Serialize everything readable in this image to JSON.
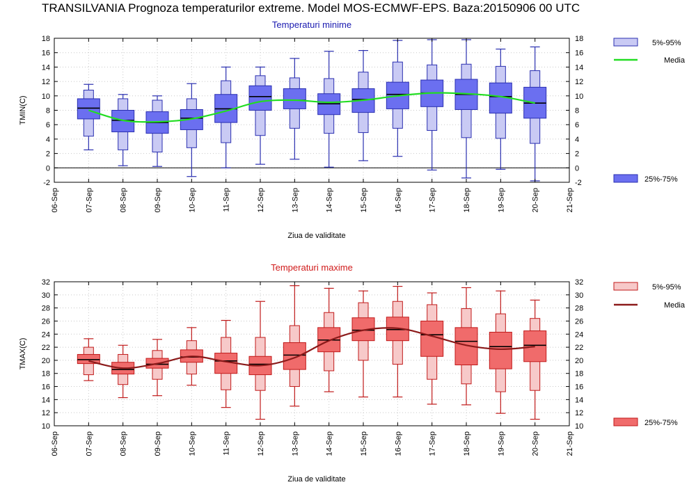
{
  "title": "TRANSILVANIA  Prognoza temperaturilor extreme.  Model MOS-ECMWF-EPS. Baza:20150906 00 UTC",
  "colors": {
    "tmin_box_inner": "#6b6ff0",
    "tmin_box_outer": "#c9caf4",
    "tmin_stroke": "#2a2fb0",
    "tmin_mean": "#22dd22",
    "tmin_title": "#1a1ab0",
    "tmax_box_inner": "#f06b6b",
    "tmax_box_outer": "#f7c9c9",
    "tmax_stroke": "#c01a1a",
    "tmax_mean": "#8b1a1a",
    "tmax_title": "#d01a1a"
  },
  "chart_data": [
    {
      "type": "box",
      "title": "Temperaturi minime",
      "xlabel": "Ziua de validitate",
      "ylabel": "TMIN(C)",
      "ylim": [
        -2,
        18
      ],
      "yticks": [
        "-2",
        "0",
        "2",
        "4",
        "6",
        "8",
        "10",
        "12",
        "14",
        "16",
        "18"
      ],
      "xticks": [
        "06-Sep",
        "07-Sep",
        "08-Sep",
        "09-Sep",
        "10-Sep",
        "11-Sep",
        "12-Sep",
        "13-Sep",
        "14-Sep",
        "15-Sep",
        "16-Sep",
        "17-Sep",
        "18-Sep",
        "19-Sep",
        "20-Sep",
        "21-Sep"
      ],
      "legend": {
        "outer": "5%-95%",
        "mean": "Media",
        "inner": "25%-75%"
      },
      "categories": [
        "07-Sep",
        "08-Sep",
        "09-Sep",
        "10-Sep",
        "11-Sep",
        "12-Sep",
        "13-Sep",
        "14-Sep",
        "15-Sep",
        "16-Sep",
        "17-Sep",
        "18-Sep",
        "19-Sep",
        "20-Sep"
      ],
      "min": [
        2.5,
        0.3,
        0.2,
        -1.2,
        0.0,
        0.5,
        1.2,
        0.1,
        1.0,
        1.6,
        -0.3,
        -1.4,
        -0.2,
        -1.8
      ],
      "p5": [
        4.4,
        2.5,
        2.2,
        2.8,
        3.5,
        4.5,
        5.5,
        4.8,
        4.9,
        5.5,
        5.2,
        4.2,
        4.1,
        3.4
      ],
      "p25": [
        6.8,
        5.0,
        4.8,
        5.3,
        6.3,
        8.0,
        8.2,
        7.4,
        7.7,
        8.2,
        8.5,
        8.1,
        7.6,
        6.9
      ],
      "median": [
        8.3,
        6.6,
        6.3,
        6.9,
        8.2,
        9.9,
        9.4,
        8.9,
        9.5,
        10.2,
        10.4,
        10.2,
        9.9,
        9.0
      ],
      "p75": [
        9.6,
        8.0,
        7.8,
        8.1,
        10.2,
        11.4,
        11.0,
        10.3,
        11.0,
        11.9,
        12.2,
        12.3,
        11.8,
        11.2
      ],
      "p95": [
        10.8,
        9.6,
        9.4,
        9.6,
        12.1,
        12.8,
        12.5,
        12.4,
        13.3,
        14.7,
        14.3,
        14.4,
        14.1,
        13.5
      ],
      "max": [
        11.6,
        10.2,
        10.0,
        11.7,
        14.0,
        14.0,
        15.2,
        16.2,
        16.3,
        17.7,
        17.8,
        17.8,
        16.5,
        16.8
      ],
      "mean": [
        8.0,
        6.6,
        6.4,
        6.8,
        7.9,
        9.2,
        9.4,
        9.1,
        9.4,
        10.0,
        10.4,
        10.3,
        9.9,
        9.0
      ]
    },
    {
      "type": "box",
      "title": "Temperaturi maxime",
      "xlabel": "Ziua de validitate",
      "ylabel": "TMAX(C)",
      "ylim": [
        10,
        32
      ],
      "yticks": [
        "10",
        "12",
        "14",
        "16",
        "18",
        "20",
        "22",
        "24",
        "26",
        "28",
        "30",
        "32"
      ],
      "xticks": [
        "06-Sep",
        "07-Sep",
        "08-Sep",
        "09-Sep",
        "10-Sep",
        "11-Sep",
        "12-Sep",
        "13-Sep",
        "14-Sep",
        "15-Sep",
        "16-Sep",
        "17-Sep",
        "18-Sep",
        "19-Sep",
        "20-Sep",
        "21-Sep"
      ],
      "legend": {
        "outer": "5%-95%",
        "mean": "Media",
        "inner": "25%-75%"
      },
      "categories": [
        "07-Sep",
        "08-Sep",
        "09-Sep",
        "10-Sep",
        "11-Sep",
        "12-Sep",
        "13-Sep",
        "14-Sep",
        "15-Sep",
        "16-Sep",
        "17-Sep",
        "18-Sep",
        "19-Sep",
        "20-Sep"
      ],
      "min": [
        16.9,
        14.3,
        14.6,
        16.2,
        12.8,
        11.0,
        13.0,
        15.2,
        14.4,
        14.4,
        13.3,
        13.2,
        11.9,
        11.0
      ],
      "p5": [
        17.8,
        16.3,
        17.1,
        17.9,
        15.5,
        15.4,
        16.0,
        18.4,
        20.0,
        19.4,
        17.1,
        16.4,
        15.2,
        15.4
      ],
      "p25": [
        19.5,
        17.9,
        18.8,
        19.7,
        18.0,
        17.8,
        18.6,
        21.3,
        23.0,
        23.0,
        20.6,
        19.3,
        18.7,
        19.8
      ],
      "median": [
        20.1,
        18.6,
        19.4,
        20.5,
        19.9,
        19.4,
        20.8,
        23.1,
        24.6,
        24.7,
        23.9,
        22.9,
        22.1,
        22.3
      ],
      "p75": [
        20.9,
        19.7,
        20.3,
        21.6,
        21.1,
        20.6,
        22.7,
        25.0,
        26.5,
        26.6,
        26.0,
        25.0,
        24.3,
        24.5
      ],
      "p95": [
        22.0,
        20.9,
        21.5,
        23.0,
        23.5,
        23.5,
        25.3,
        27.3,
        28.8,
        29.0,
        28.5,
        27.9,
        27.1,
        26.4
      ],
      "max": [
        23.3,
        22.3,
        23.2,
        25.0,
        26.1,
        29.0,
        31.4,
        31.0,
        30.6,
        31.3,
        30.3,
        31.1,
        30.6,
        29.2
      ],
      "mean": [
        19.9,
        18.8,
        19.5,
        20.6,
        19.8,
        19.2,
        20.4,
        23.0,
        24.6,
        24.9,
        23.7,
        22.3,
        21.7,
        22.1
      ]
    }
  ]
}
